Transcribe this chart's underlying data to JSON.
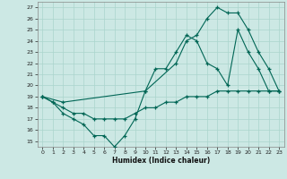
{
  "xlabel": "Humidex (Indice chaleur)",
  "bg_color": "#cce8e4",
  "grid_color": "#aad4cc",
  "line_color": "#006655",
  "xlim": [
    -0.5,
    23.5
  ],
  "ylim": [
    14.5,
    27.5
  ],
  "xticks": [
    0,
    1,
    2,
    3,
    4,
    5,
    6,
    7,
    8,
    9,
    10,
    11,
    12,
    13,
    14,
    15,
    16,
    17,
    18,
    19,
    20,
    21,
    22,
    23
  ],
  "yticks": [
    15,
    16,
    17,
    18,
    19,
    20,
    21,
    22,
    23,
    24,
    25,
    26,
    27
  ],
  "line1_x": [
    0,
    1,
    2,
    3,
    4,
    5,
    6,
    7,
    8,
    9,
    10,
    11,
    12,
    13,
    14,
    15,
    16,
    17,
    18,
    19,
    20,
    21,
    22,
    23
  ],
  "line1_y": [
    19,
    18.5,
    18,
    17.5,
    17.5,
    17,
    17,
    17,
    17,
    17.5,
    18,
    18,
    18.5,
    18.5,
    19,
    19,
    19,
    19.5,
    19.5,
    19.5,
    19.5,
    19.5,
    19.5,
    19.5
  ],
  "line2_x": [
    0,
    1,
    2,
    3,
    4,
    5,
    6,
    7,
    8,
    9,
    10,
    11,
    12,
    13,
    14,
    15,
    16,
    17,
    18,
    19,
    20,
    21,
    22,
    23
  ],
  "line2_y": [
    19,
    18.5,
    17.5,
    17,
    16.5,
    15.5,
    15.5,
    14.5,
    15.5,
    17,
    19.5,
    21.5,
    21.5,
    23,
    24.5,
    24,
    22,
    21.5,
    20,
    25,
    23,
    21.5,
    19.5,
    19.5
  ],
  "line3_x": [
    0,
    2,
    10,
    13,
    14,
    15,
    16,
    17,
    18,
    19,
    20,
    21,
    22,
    23
  ],
  "line3_y": [
    19,
    18.5,
    19.5,
    22,
    24,
    24.5,
    26,
    27,
    26.5,
    26.5,
    25,
    23,
    21.5,
    19.5
  ]
}
